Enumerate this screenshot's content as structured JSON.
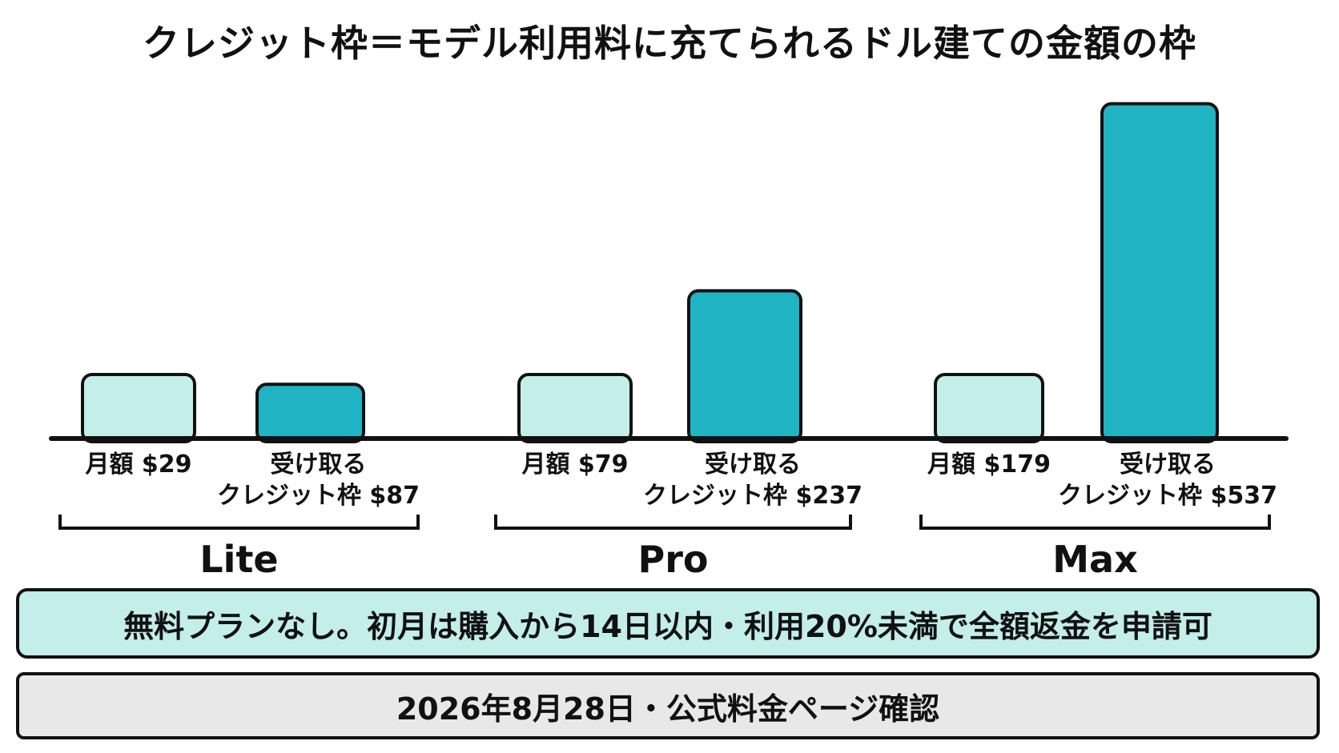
{
  "colors": {
    "monthly_fill": "#c3eeea",
    "credit_fill": "#1fb3c4",
    "stroke": "#111111",
    "note_bg": "#c3eeea",
    "date_bg": "#e8e8e8"
  },
  "chart_data": {
    "type": "bar",
    "title": "クレジット枠＝モデル利用料に充てられるドル建ての金額の枠",
    "ylim": [
      0,
      600
    ],
    "grid": false,
    "legend": "none",
    "groups": [
      {
        "plan": "Lite",
        "bars": [
          {
            "kind": "monthly",
            "value": 29,
            "label": [
              "月額 $29"
            ]
          },
          {
            "kind": "credit",
            "value": 87,
            "label": [
              "受け取る",
              "クレジット枠 $87"
            ]
          }
        ]
      },
      {
        "plan": "Pro",
        "bars": [
          {
            "kind": "monthly",
            "value": 79,
            "label": [
              "月額 $79"
            ]
          },
          {
            "kind": "credit",
            "value": 237,
            "label": [
              "受け取る",
              "クレジット枠 $237"
            ]
          }
        ]
      },
      {
        "plan": "Max",
        "bars": [
          {
            "kind": "monthly",
            "value": 179,
            "label": [
              "月額 $179"
            ]
          },
          {
            "kind": "credit",
            "value": 537,
            "label": [
              "受け取る",
              "クレジット枠 $537"
            ]
          }
        ]
      }
    ]
  },
  "note": "無料プランなし。初月は購入から14日以内・利用20%未満で全額返金を申請可",
  "footer": "2026年8月28日・公式料金ページ確認"
}
